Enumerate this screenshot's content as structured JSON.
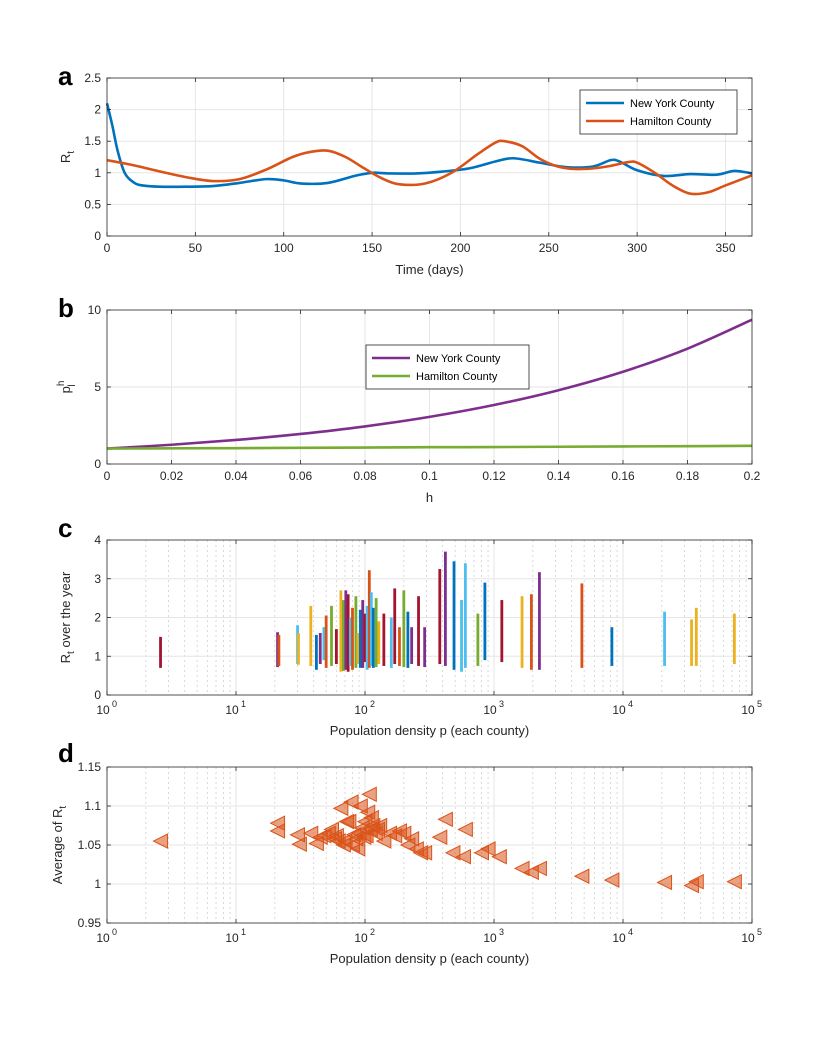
{
  "panel_labels": [
    "a",
    "b",
    "c",
    "d"
  ],
  "chart_data": [
    {
      "panel": "a",
      "type": "line",
      "title": "",
      "xlabel": "Time (days)",
      "ylabel": "R",
      "ylabel_sub": "t",
      "xlim": [
        0,
        365
      ],
      "ylim": [
        0,
        2.5
      ],
      "xticks": [
        0,
        50,
        100,
        150,
        200,
        250,
        300,
        350
      ],
      "yticks": [
        0,
        0.5,
        1,
        1.5,
        2,
        2.5
      ],
      "yticklabels": [
        "0",
        "0.5",
        "1",
        "1.5",
        "2",
        "2.5"
      ],
      "grid": true,
      "legend_position": "top-right",
      "series": [
        {
          "name": "New York County",
          "color": "#0072BD",
          "x": [
            0,
            3,
            6,
            10,
            15,
            20,
            30,
            45,
            60,
            75,
            90,
            100,
            110,
            125,
            140,
            150,
            160,
            175,
            190,
            205,
            220,
            230,
            245,
            260,
            275,
            285,
            290,
            300,
            315,
            330,
            345,
            355,
            365
          ],
          "y": [
            2.1,
            1.75,
            1.35,
            1.0,
            0.85,
            0.8,
            0.78,
            0.78,
            0.79,
            0.84,
            0.9,
            0.88,
            0.83,
            0.84,
            0.95,
            1.0,
            0.99,
            0.99,
            1.02,
            1.07,
            1.18,
            1.23,
            1.16,
            1.09,
            1.1,
            1.2,
            1.18,
            1.04,
            0.95,
            0.98,
            0.97,
            1.03,
            0.99
          ]
        },
        {
          "name": "Hamilton County",
          "color": "#D95319",
          "x": [
            0,
            15,
            30,
            45,
            60,
            75,
            90,
            105,
            115,
            125,
            135,
            145,
            155,
            165,
            180,
            195,
            210,
            220,
            225,
            235,
            245,
            255,
            265,
            275,
            285,
            295,
            300,
            310,
            320,
            330,
            340,
            350,
            365
          ],
          "y": [
            1.2,
            1.12,
            1.02,
            0.93,
            0.87,
            0.9,
            1.05,
            1.25,
            1.33,
            1.35,
            1.25,
            1.08,
            0.92,
            0.82,
            0.83,
            1.0,
            1.3,
            1.48,
            1.5,
            1.42,
            1.22,
            1.1,
            1.06,
            1.07,
            1.11,
            1.17,
            1.16,
            1.0,
            0.8,
            0.67,
            0.69,
            0.8,
            0.96
          ]
        }
      ]
    },
    {
      "panel": "b",
      "type": "line",
      "title": "",
      "xlabel": "h",
      "ylabel": "p",
      "ylabel_sup": "h",
      "ylabel_sub": "l",
      "xlim": [
        0,
        0.2
      ],
      "ylim": [
        0,
        10
      ],
      "xticks": [
        0,
        0.02,
        0.04,
        0.06,
        0.08,
        0.1,
        0.12,
        0.14,
        0.16,
        0.18,
        0.2
      ],
      "xticklabels": [
        "0",
        "0.02",
        "0.04",
        "0.06",
        "0.08",
        "0.1",
        "0.12",
        "0.14",
        "0.16",
        "0.18",
        "0.2"
      ],
      "yticks": [
        0,
        5,
        10
      ],
      "yticklabels": [
        "0",
        "5",
        "10"
      ],
      "grid": true,
      "legend_position": "top-center",
      "series": [
        {
          "name": "New York County",
          "color": "#7E2F8E",
          "x": [
            0,
            0.02,
            0.04,
            0.06,
            0.08,
            0.1,
            0.12,
            0.14,
            0.16,
            0.18,
            0.2
          ],
          "y": [
            1.0,
            1.25,
            1.56,
            1.95,
            2.44,
            3.06,
            3.83,
            4.79,
            5.99,
            7.49,
            9.37
          ]
        },
        {
          "name": "Hamilton County",
          "color": "#77AC30",
          "x": [
            0,
            0.02,
            0.04,
            0.06,
            0.08,
            0.1,
            0.12,
            0.14,
            0.16,
            0.18,
            0.2
          ],
          "y": [
            1.0,
            1.02,
            1.03,
            1.05,
            1.07,
            1.09,
            1.1,
            1.12,
            1.14,
            1.16,
            1.18
          ]
        }
      ]
    },
    {
      "panel": "c",
      "type": "bar",
      "title": "",
      "xlabel": "Population density p (each county)",
      "ylabel": "R",
      "ylabel_sub": "t",
      "ylabel_suffix": " over the year",
      "xscale": "log",
      "xlim": [
        1,
        100000
      ],
      "ylim": [
        0,
        4
      ],
      "xticks": [
        1,
        10,
        100,
        1000,
        10000,
        100000
      ],
      "xtick_base": "10",
      "xtick_exponents": [
        "0",
        "1",
        "2",
        "3",
        "4",
        "5"
      ],
      "yticks": [
        0,
        1,
        2,
        3,
        4
      ],
      "yticklabels": [
        "0",
        "1",
        "2",
        "3",
        "4"
      ],
      "grid": true,
      "ranges": [
        {
          "x": 2.6,
          "min": 0.7,
          "max": 1.5,
          "color": "#A2142F"
        },
        {
          "x": 21,
          "min": 0.72,
          "max": 1.62,
          "color": "#7E2F8E"
        },
        {
          "x": 21.5,
          "min": 0.75,
          "max": 1.55,
          "color": "#D95319"
        },
        {
          "x": 30,
          "min": 0.8,
          "max": 1.8,
          "color": "#4DBEEE"
        },
        {
          "x": 30.5,
          "min": 0.78,
          "max": 1.6,
          "color": "#EDB120"
        },
        {
          "x": 38,
          "min": 0.75,
          "max": 2.3,
          "color": "#EDB120"
        },
        {
          "x": 42,
          "min": 0.65,
          "max": 1.55,
          "color": "#0072BD"
        },
        {
          "x": 45,
          "min": 0.8,
          "max": 1.6,
          "color": "#7E2F8E"
        },
        {
          "x": 48,
          "min": 0.9,
          "max": 1.75,
          "color": "#4DBEEE"
        },
        {
          "x": 50,
          "min": 0.7,
          "max": 2.05,
          "color": "#D95319"
        },
        {
          "x": 55,
          "min": 0.75,
          "max": 2.3,
          "color": "#77AC30"
        },
        {
          "x": 60,
          "min": 0.8,
          "max": 1.7,
          "color": "#A2142F"
        },
        {
          "x": 65,
          "min": 0.6,
          "max": 2.7,
          "color": "#EDB120"
        },
        {
          "x": 68,
          "min": 0.62,
          "max": 2.45,
          "color": "#77AC30"
        },
        {
          "x": 71,
          "min": 0.65,
          "max": 2.7,
          "color": "#7E2F8E"
        },
        {
          "x": 74,
          "min": 0.6,
          "max": 2.6,
          "color": "#A2142F"
        },
        {
          "x": 77,
          "min": 0.75,
          "max": 2.0,
          "color": "#4DBEEE"
        },
        {
          "x": 80,
          "min": 0.65,
          "max": 2.25,
          "color": "#D95319"
        },
        {
          "x": 85,
          "min": 0.7,
          "max": 2.55,
          "color": "#77AC30"
        },
        {
          "x": 88,
          "min": 0.8,
          "max": 1.6,
          "color": "#EDB120"
        },
        {
          "x": 92,
          "min": 0.7,
          "max": 2.2,
          "color": "#0072BD"
        },
        {
          "x": 96,
          "min": 0.7,
          "max": 2.45,
          "color": "#7E2F8E"
        },
        {
          "x": 100,
          "min": 0.85,
          "max": 2.1,
          "color": "#A2142F"
        },
        {
          "x": 104,
          "min": 0.65,
          "max": 2.3,
          "color": "#4DBEEE"
        },
        {
          "x": 108,
          "min": 0.7,
          "max": 3.22,
          "color": "#D95319"
        },
        {
          "x": 112,
          "min": 0.75,
          "max": 2.65,
          "color": "#4DBEEE"
        },
        {
          "x": 116,
          "min": 0.7,
          "max": 2.25,
          "color": "#0072BD"
        },
        {
          "x": 122,
          "min": 0.72,
          "max": 2.5,
          "color": "#77AC30"
        },
        {
          "x": 128,
          "min": 0.8,
          "max": 1.9,
          "color": "#EDB120"
        },
        {
          "x": 140,
          "min": 0.75,
          "max": 2.1,
          "color": "#A2142F"
        },
        {
          "x": 160,
          "min": 0.7,
          "max": 2.0,
          "color": "#4DBEEE"
        },
        {
          "x": 170,
          "min": 0.8,
          "max": 2.75,
          "color": "#A2142F"
        },
        {
          "x": 185,
          "min": 0.75,
          "max": 1.75,
          "color": "#D95319"
        },
        {
          "x": 200,
          "min": 0.72,
          "max": 2.7,
          "color": "#77AC30"
        },
        {
          "x": 215,
          "min": 0.7,
          "max": 2.15,
          "color": "#0072BD"
        },
        {
          "x": 230,
          "min": 0.8,
          "max": 1.75,
          "color": "#7E2F8E"
        },
        {
          "x": 260,
          "min": 0.75,
          "max": 2.55,
          "color": "#A2142F"
        },
        {
          "x": 290,
          "min": 0.72,
          "max": 1.75,
          "color": "#7E2F8E"
        },
        {
          "x": 380,
          "min": 0.8,
          "max": 3.25,
          "color": "#A2142F"
        },
        {
          "x": 420,
          "min": 0.75,
          "max": 3.7,
          "color": "#7E2F8E"
        },
        {
          "x": 490,
          "min": 0.65,
          "max": 3.45,
          "color": "#0072BD"
        },
        {
          "x": 560,
          "min": 0.6,
          "max": 2.45,
          "color": "#4DBEEE"
        },
        {
          "x": 600,
          "min": 0.7,
          "max": 3.4,
          "color": "#4DBEEE"
        },
        {
          "x": 750,
          "min": 0.75,
          "max": 2.1,
          "color": "#77AC30"
        },
        {
          "x": 850,
          "min": 0.9,
          "max": 2.9,
          "color": "#0072BD"
        },
        {
          "x": 1150,
          "min": 0.85,
          "max": 2.45,
          "color": "#A2142F"
        },
        {
          "x": 1650,
          "min": 0.7,
          "max": 2.55,
          "color": "#EDB120"
        },
        {
          "x": 1950,
          "min": 0.65,
          "max": 2.6,
          "color": "#D95319"
        },
        {
          "x": 2250,
          "min": 0.65,
          "max": 3.17,
          "color": "#7E2F8E"
        },
        {
          "x": 4800,
          "min": 0.7,
          "max": 2.88,
          "color": "#D95319"
        },
        {
          "x": 8200,
          "min": 0.75,
          "max": 1.75,
          "color": "#0072BD"
        },
        {
          "x": 21000,
          "min": 0.75,
          "max": 2.15,
          "color": "#4DBEEE"
        },
        {
          "x": 34000,
          "min": 0.75,
          "max": 1.95,
          "color": "#EDB120"
        },
        {
          "x": 37000,
          "min": 0.75,
          "max": 2.25,
          "color": "#EDB120"
        },
        {
          "x": 73000,
          "min": 0.8,
          "max": 2.1,
          "color": "#EDB120"
        }
      ]
    },
    {
      "panel": "d",
      "type": "scatter",
      "title": "",
      "xlabel": "Population density p (each county)",
      "ylabel": "Average of R",
      "ylabel_sub": "t",
      "xscale": "log",
      "xlim": [
        1,
        100000
      ],
      "ylim": [
        0.95,
        1.15
      ],
      "xticks": [
        1,
        10,
        100,
        1000,
        10000,
        100000
      ],
      "xtick_base": "10",
      "xtick_exponents": [
        "0",
        "1",
        "2",
        "3",
        "4",
        "5"
      ],
      "yticks": [
        0.95,
        1.0,
        1.05,
        1.1,
        1.15
      ],
      "yticklabels": [
        "0.95",
        "1",
        "1.05",
        "1.1",
        "1.15"
      ],
      "grid": true,
      "marker": "triangle-left",
      "color": "#D95319",
      "points": {
        "x": [
          2.6,
          21,
          21,
          30,
          31,
          38,
          42,
          45,
          48,
          52,
          55,
          58,
          60,
          62,
          65,
          68,
          70,
          72,
          75,
          78,
          80,
          82,
          85,
          88,
          90,
          92,
          95,
          98,
          100,
          102,
          105,
          108,
          110,
          112,
          115,
          120,
          125,
          130,
          140,
          155,
          170,
          185,
          200,
          215,
          230,
          250,
          270,
          290,
          380,
          420,
          480,
          580,
          600,
          800,
          900,
          1100,
          1650,
          1950,
          2250,
          4800,
          8200,
          21000,
          34000,
          37000,
          73000
        ],
        "y": [
          1.055,
          1.078,
          1.068,
          1.063,
          1.051,
          1.065,
          1.052,
          1.06,
          1.062,
          1.065,
          1.07,
          1.058,
          1.062,
          1.055,
          1.097,
          1.05,
          1.055,
          1.08,
          1.08,
          1.105,
          1.05,
          1.063,
          1.058,
          1.045,
          1.065,
          1.1,
          1.072,
          1.06,
          1.08,
          1.062,
          1.092,
          1.115,
          1.07,
          1.085,
          1.075,
          1.065,
          1.07,
          1.075,
          1.055,
          1.065,
          1.062,
          1.068,
          1.065,
          1.05,
          1.058,
          1.045,
          1.04,
          1.04,
          1.06,
          1.083,
          1.04,
          1.035,
          1.07,
          1.04,
          1.045,
          1.035,
          1.02,
          1.015,
          1.02,
          1.01,
          1.005,
          1.002,
          0.998,
          1.003,
          1.003
        ]
      }
    }
  ]
}
